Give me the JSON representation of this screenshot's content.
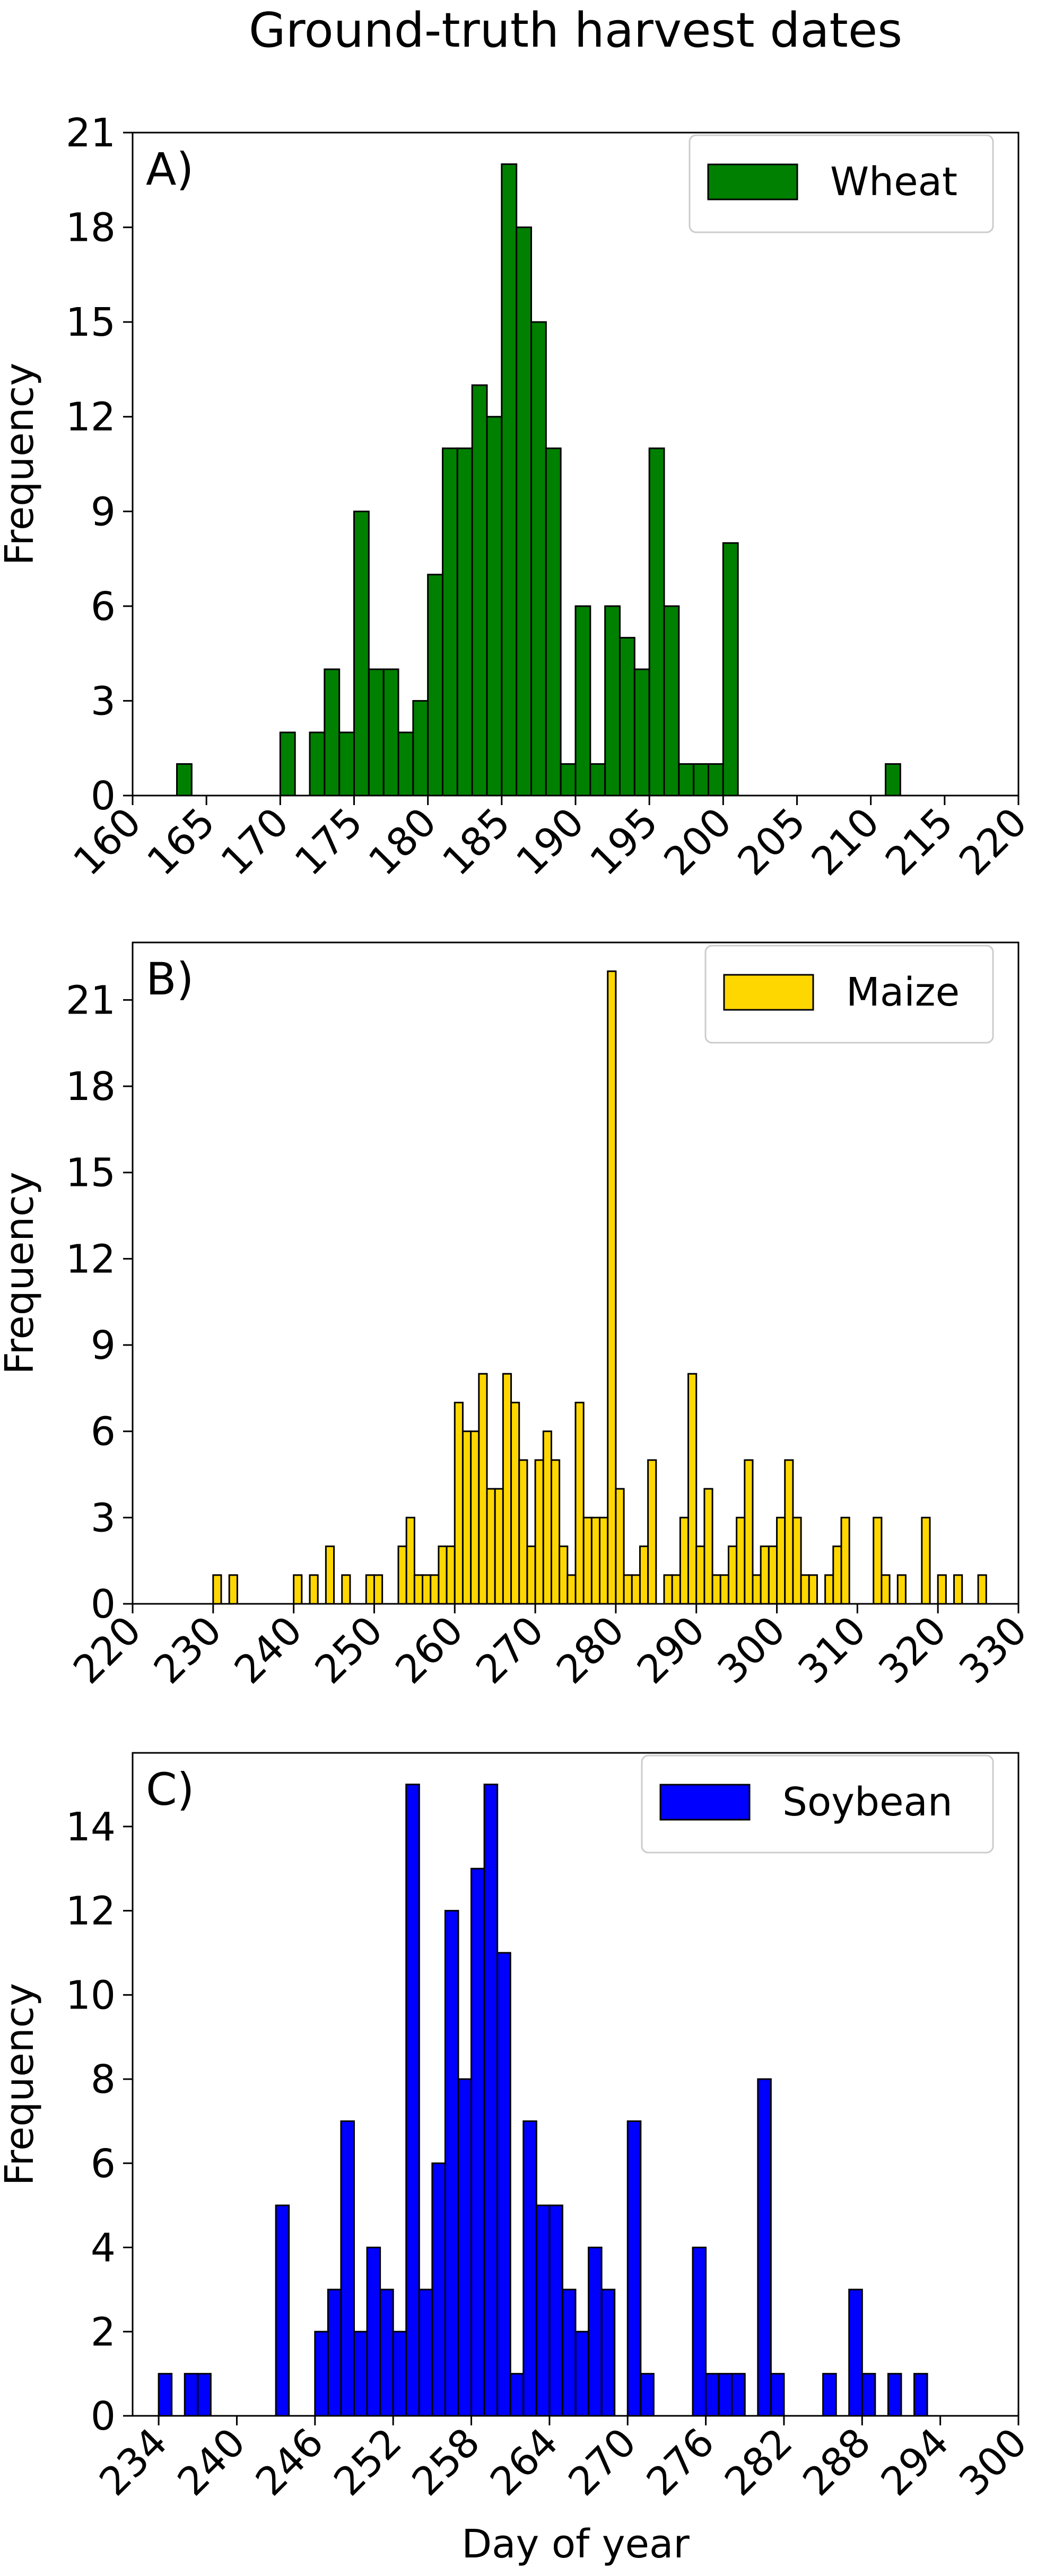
{
  "figure": {
    "title": "Ground-truth harvest dates"
  },
  "chart_data": [
    {
      "type": "bar",
      "panel_label": "A)",
      "legend_label": "Wheat",
      "legend_position": "top-right",
      "color": "#008000",
      "edge_color": "#000000",
      "title": "",
      "xlabel": "",
      "ylabel": "Frequency",
      "xlim": [
        160,
        220
      ],
      "ylim": [
        0,
        21
      ],
      "bin_width": 1,
      "xticks": [
        160,
        165,
        170,
        175,
        180,
        185,
        190,
        195,
        200,
        205,
        210,
        215,
        220
      ],
      "yticks": [
        0,
        3,
        6,
        9,
        12,
        15,
        18,
        21
      ],
      "bins": [
        {
          "x": 163,
          "y": 1
        },
        {
          "x": 170,
          "y": 2
        },
        {
          "x": 172,
          "y": 2
        },
        {
          "x": 173,
          "y": 4
        },
        {
          "x": 174,
          "y": 2
        },
        {
          "x": 175,
          "y": 9
        },
        {
          "x": 176,
          "y": 4
        },
        {
          "x": 177,
          "y": 4
        },
        {
          "x": 178,
          "y": 2
        },
        {
          "x": 179,
          "y": 3
        },
        {
          "x": 180,
          "y": 7
        },
        {
          "x": 181,
          "y": 11
        },
        {
          "x": 182,
          "y": 11
        },
        {
          "x": 183,
          "y": 13
        },
        {
          "x": 184,
          "y": 12
        },
        {
          "x": 185,
          "y": 20
        },
        {
          "x": 186,
          "y": 18
        },
        {
          "x": 187,
          "y": 15
        },
        {
          "x": 188,
          "y": 11
        },
        {
          "x": 189,
          "y": 1
        },
        {
          "x": 190,
          "y": 6
        },
        {
          "x": 191,
          "y": 1
        },
        {
          "x": 192,
          "y": 6
        },
        {
          "x": 193,
          "y": 5
        },
        {
          "x": 194,
          "y": 4
        },
        {
          "x": 195,
          "y": 11
        },
        {
          "x": 196,
          "y": 6
        },
        {
          "x": 197,
          "y": 1
        },
        {
          "x": 198,
          "y": 1
        },
        {
          "x": 199,
          "y": 1
        },
        {
          "x": 200,
          "y": 8
        },
        {
          "x": 211,
          "y": 1
        }
      ]
    },
    {
      "type": "bar",
      "panel_label": "B)",
      "legend_label": "Maize",
      "legend_position": "top-right",
      "color": "#FFD700",
      "edge_color": "#000000",
      "title": "",
      "xlabel": "",
      "ylabel": "Frequency",
      "xlim": [
        220,
        330
      ],
      "ylim": [
        0,
        23
      ],
      "bin_width": 1,
      "xticks": [
        220,
        230,
        240,
        250,
        260,
        270,
        280,
        290,
        300,
        310,
        320,
        330
      ],
      "yticks": [
        0,
        3,
        6,
        9,
        12,
        15,
        18,
        21
      ],
      "bins": [
        {
          "x": 230,
          "y": 1
        },
        {
          "x": 232,
          "y": 1
        },
        {
          "x": 240,
          "y": 1
        },
        {
          "x": 242,
          "y": 1
        },
        {
          "x": 244,
          "y": 2
        },
        {
          "x": 246,
          "y": 1
        },
        {
          "x": 249,
          "y": 1
        },
        {
          "x": 250,
          "y": 1
        },
        {
          "x": 253,
          "y": 2
        },
        {
          "x": 254,
          "y": 3
        },
        {
          "x": 255,
          "y": 1
        },
        {
          "x": 256,
          "y": 1
        },
        {
          "x": 257,
          "y": 1
        },
        {
          "x": 258,
          "y": 2
        },
        {
          "x": 259,
          "y": 2
        },
        {
          "x": 260,
          "y": 7
        },
        {
          "x": 261,
          "y": 6
        },
        {
          "x": 262,
          "y": 6
        },
        {
          "x": 263,
          "y": 8
        },
        {
          "x": 264,
          "y": 4
        },
        {
          "x": 265,
          "y": 4
        },
        {
          "x": 266,
          "y": 8
        },
        {
          "x": 267,
          "y": 7
        },
        {
          "x": 268,
          "y": 5
        },
        {
          "x": 269,
          "y": 2
        },
        {
          "x": 270,
          "y": 5
        },
        {
          "x": 271,
          "y": 6
        },
        {
          "x": 272,
          "y": 5
        },
        {
          "x": 273,
          "y": 2
        },
        {
          "x": 274,
          "y": 1
        },
        {
          "x": 275,
          "y": 7
        },
        {
          "x": 276,
          "y": 3
        },
        {
          "x": 277,
          "y": 3
        },
        {
          "x": 278,
          "y": 3
        },
        {
          "x": 279,
          "y": 22
        },
        {
          "x": 280,
          "y": 4
        },
        {
          "x": 281,
          "y": 1
        },
        {
          "x": 282,
          "y": 1
        },
        {
          "x": 283,
          "y": 2
        },
        {
          "x": 284,
          "y": 5
        },
        {
          "x": 286,
          "y": 1
        },
        {
          "x": 287,
          "y": 1
        },
        {
          "x": 288,
          "y": 3
        },
        {
          "x": 289,
          "y": 8
        },
        {
          "x": 290,
          "y": 2
        },
        {
          "x": 291,
          "y": 4
        },
        {
          "x": 292,
          "y": 1
        },
        {
          "x": 293,
          "y": 1
        },
        {
          "x": 294,
          "y": 2
        },
        {
          "x": 295,
          "y": 3
        },
        {
          "x": 296,
          "y": 5
        },
        {
          "x": 297,
          "y": 1
        },
        {
          "x": 298,
          "y": 2
        },
        {
          "x": 299,
          "y": 2
        },
        {
          "x": 300,
          "y": 3
        },
        {
          "x": 301,
          "y": 5
        },
        {
          "x": 302,
          "y": 3
        },
        {
          "x": 303,
          "y": 1
        },
        {
          "x": 304,
          "y": 1
        },
        {
          "x": 306,
          "y": 1
        },
        {
          "x": 307,
          "y": 2
        },
        {
          "x": 308,
          "y": 3
        },
        {
          "x": 312,
          "y": 3
        },
        {
          "x": 313,
          "y": 1
        },
        {
          "x": 315,
          "y": 1
        },
        {
          "x": 318,
          "y": 3
        },
        {
          "x": 320,
          "y": 1
        },
        {
          "x": 322,
          "y": 1
        },
        {
          "x": 325,
          "y": 1
        }
      ]
    },
    {
      "type": "bar",
      "panel_label": "C)",
      "legend_label": "Soybean",
      "legend_position": "top-right",
      "color": "#0000FF",
      "edge_color": "#000000",
      "title": "",
      "xlabel": "Day of year",
      "ylabel": "Frequency",
      "xlim": [
        232,
        300
      ],
      "ylim": [
        0,
        15.75
      ],
      "bin_width": 1,
      "xticks": [
        234,
        240,
        246,
        252,
        258,
        264,
        270,
        276,
        282,
        288,
        294,
        300
      ],
      "yticks": [
        0,
        2,
        4,
        6,
        8,
        10,
        12,
        14
      ],
      "bins": [
        {
          "x": 234,
          "y": 1
        },
        {
          "x": 236,
          "y": 1
        },
        {
          "x": 237,
          "y": 1
        },
        {
          "x": 243,
          "y": 5
        },
        {
          "x": 246,
          "y": 2
        },
        {
          "x": 247,
          "y": 3
        },
        {
          "x": 248,
          "y": 7
        },
        {
          "x": 249,
          "y": 2
        },
        {
          "x": 250,
          "y": 4
        },
        {
          "x": 251,
          "y": 3
        },
        {
          "x": 252,
          "y": 2
        },
        {
          "x": 253,
          "y": 15
        },
        {
          "x": 254,
          "y": 3
        },
        {
          "x": 255,
          "y": 6
        },
        {
          "x": 256,
          "y": 12
        },
        {
          "x": 257,
          "y": 8
        },
        {
          "x": 258,
          "y": 13
        },
        {
          "x": 259,
          "y": 15
        },
        {
          "x": 260,
          "y": 11
        },
        {
          "x": 261,
          "y": 1
        },
        {
          "x": 262,
          "y": 7
        },
        {
          "x": 263,
          "y": 5
        },
        {
          "x": 264,
          "y": 5
        },
        {
          "x": 265,
          "y": 3
        },
        {
          "x": 266,
          "y": 2
        },
        {
          "x": 267,
          "y": 4
        },
        {
          "x": 268,
          "y": 3
        },
        {
          "x": 270,
          "y": 7
        },
        {
          "x": 271,
          "y": 1
        },
        {
          "x": 275,
          "y": 4
        },
        {
          "x": 276,
          "y": 1
        },
        {
          "x": 277,
          "y": 1
        },
        {
          "x": 278,
          "y": 1
        },
        {
          "x": 280,
          "y": 8
        },
        {
          "x": 281,
          "y": 1
        },
        {
          "x": 285,
          "y": 1
        },
        {
          "x": 287,
          "y": 3
        },
        {
          "x": 288,
          "y": 1
        },
        {
          "x": 290,
          "y": 1
        },
        {
          "x": 292,
          "y": 1
        }
      ]
    }
  ]
}
